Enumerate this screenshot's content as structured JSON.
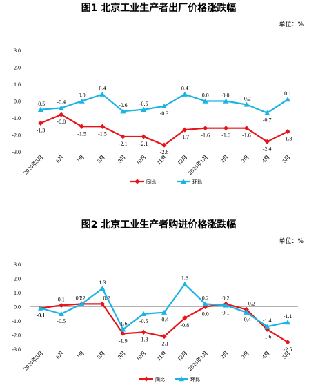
{
  "chart_data": [
    {
      "type": "line",
      "title": "图1   北京工业生产者出厂价格涨跌幅",
      "unit": "单位：%",
      "categories": [
        "2024年5月",
        "6月",
        "7月",
        "8月",
        "9月",
        "10月",
        "11月",
        "12月",
        "2025年1月",
        "2月",
        "3月",
        "4月",
        "5月"
      ],
      "ylim": [
        -3.0,
        3.0
      ],
      "yticks": [
        "3.0",
        "2.0",
        "1.0",
        "0.0",
        "-1.0",
        "-2.0",
        "-3.0"
      ],
      "ytick_values": [
        3,
        2,
        1,
        0,
        -1,
        -2,
        -3
      ],
      "legend_position": "bottom",
      "series": [
        {
          "name": "同比",
          "color": "#e8141a",
          "marker": "diamond",
          "values": [
            -1.3,
            -0.8,
            -1.5,
            -1.5,
            -2.1,
            -2.1,
            -2.6,
            -1.7,
            -1.6,
            -1.6,
            -1.6,
            -2.4,
            -1.8
          ],
          "labels": [
            "-1.3",
            "-0.8",
            "-1.5",
            "-1.5",
            "-2.1",
            "-2.1",
            "-2.6",
            "-1.7",
            "-1.6",
            "-1.6",
            "-1.6",
            "-2.4",
            "-1.8"
          ]
        },
        {
          "name": "环比",
          "color": "#1ab3e6",
          "marker": "triangle",
          "values": [
            -0.5,
            -0.4,
            0.0,
            0.4,
            -0.6,
            -0.5,
            -0.3,
            0.4,
            0.0,
            0.0,
            -0.2,
            -0.7,
            0.1
          ],
          "labels": [
            "-0.5",
            "-0.4",
            "0.0",
            "0.4",
            "-0.6",
            "-0.5",
            "-0.3",
            "0.4",
            "0.0",
            "0.0",
            "-0.2",
            "-0.7",
            "0.1"
          ]
        }
      ]
    },
    {
      "type": "line",
      "title": "图2   北京工业生产者购进价格涨跌幅",
      "unit": "单位：%",
      "categories": [
        "2024年5月",
        "6月",
        "7月",
        "8月",
        "9月",
        "10月",
        "11月",
        "12月",
        "2025年1月",
        "2月",
        "3月",
        "4月",
        "5月"
      ],
      "ylim": [
        -3.0,
        3.0
      ],
      "yticks": [
        "3.0",
        "2.0",
        "1.0",
        "0.0",
        "-1.0",
        "-2.0",
        "-3.0"
      ],
      "ytick_values": [
        3,
        2,
        1,
        0,
        -1,
        -2,
        -3
      ],
      "legend_position": "bottom",
      "series": [
        {
          "name": "同比",
          "color": "#e8141a",
          "marker": "diamond",
          "values": [
            -0.1,
            0.1,
            0.2,
            0.2,
            -1.9,
            -1.8,
            -2.1,
            -0.8,
            0.0,
            0.2,
            -0.2,
            -1.6,
            -2.5
          ],
          "labels": [
            "-0.1",
            "0.1",
            "0.2",
            "0.2",
            "-1.9",
            "-1.8",
            "-2.1",
            "-0.8",
            "0.0",
            "0.2",
            "-0.2",
            "-1.6",
            "-2.5"
          ]
        },
        {
          "name": "环比",
          "color": "#1ab3e6",
          "marker": "triangle",
          "values": [
            -0.1,
            -0.5,
            0.2,
            1.3,
            -1.6,
            -0.5,
            -0.4,
            1.6,
            0.2,
            0.1,
            -0.4,
            -1.4,
            -1.1
          ],
          "labels": [
            "-0.1",
            "-0.5",
            "0.2",
            "1.3",
            "-1.6",
            "-0.5",
            "-0.4",
            "1.6",
            "0.2",
            "0.1",
            "-0.4",
            "-1.4",
            "-1.1"
          ]
        }
      ]
    }
  ]
}
